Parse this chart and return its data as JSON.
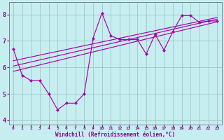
{
  "xlabel": "Windchill (Refroidissement éolien,°C)",
  "xlim": [
    -0.5,
    23.5
  ],
  "ylim": [
    3.85,
    8.45
  ],
  "yticks": [
    4,
    5,
    6,
    7,
    8
  ],
  "xticks": [
    0,
    1,
    2,
    3,
    4,
    5,
    6,
    7,
    8,
    9,
    10,
    11,
    12,
    13,
    14,
    15,
    16,
    17,
    18,
    19,
    20,
    21,
    22,
    23
  ],
  "bg_color": "#c6eef1",
  "grid_color": "#9bbcbe",
  "line_color": "#aa00aa",
  "zigzag_x": [
    0,
    1,
    2,
    3,
    4,
    5,
    6,
    7,
    8,
    9,
    10,
    11,
    12,
    13,
    14,
    15,
    16,
    17,
    18,
    19,
    20,
    21,
    22,
    23
  ],
  "zigzag_y": [
    6.7,
    5.7,
    5.5,
    5.5,
    5.0,
    4.4,
    4.65,
    4.65,
    5.0,
    7.1,
    8.05,
    7.2,
    7.05,
    7.05,
    7.05,
    6.5,
    7.25,
    6.65,
    7.35,
    7.95,
    7.95,
    7.7,
    7.75,
    7.75
  ],
  "line1_x": [
    0,
    23
  ],
  "line1_y": [
    5.85,
    7.72
  ],
  "line2_x": [
    0,
    23
  ],
  "line2_y": [
    6.05,
    7.82
  ],
  "line3_x": [
    0,
    23
  ],
  "line3_y": [
    6.25,
    7.88
  ],
  "tick_color": "#880088",
  "xlabel_color": "#880088",
  "xlabel_fontsize": 5.5,
  "ytick_fontsize": 6.0,
  "xtick_fontsize": 4.5
}
